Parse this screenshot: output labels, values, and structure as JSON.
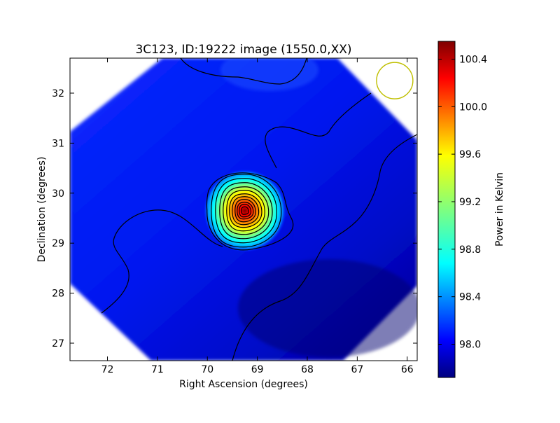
{
  "chart_data": {
    "type": "heatmap",
    "title": "3C123, ID:19222 image (1550.0,XX)",
    "xlabel": "Right Ascension (degrees)",
    "ylabel": "Declination (degrees)",
    "xlim": [
      72.75,
      65.8
    ],
    "ylim": [
      26.65,
      32.7
    ],
    "x_ticks": [
      "72",
      "71",
      "70",
      "69",
      "68",
      "67",
      "66"
    ],
    "x_tick_values": [
      72,
      71,
      70,
      69,
      68,
      67,
      66
    ],
    "y_ticks": [
      "27",
      "28",
      "29",
      "30",
      "31",
      "32"
    ],
    "y_tick_values": [
      27,
      28,
      29,
      30,
      31,
      32
    ],
    "colorbar": {
      "label": "Power in Kelvin",
      "range": [
        97.72,
        100.55
      ],
      "ticks": [
        "98.0",
        "98.4",
        "98.8",
        "99.2",
        "99.6",
        "100.0",
        "100.4"
      ],
      "tick_values": [
        98.0,
        98.4,
        98.8,
        99.2,
        99.6,
        100.0,
        100.4
      ],
      "colormap": "jet"
    },
    "peak": {
      "ra": 69.25,
      "dec": 29.65,
      "value": 100.5
    },
    "background_level": 98.05,
    "beam_marker": {
      "ra": 66.25,
      "dec": 32.25,
      "color": "#bfbf00"
    },
    "contour_color": "#000000"
  }
}
